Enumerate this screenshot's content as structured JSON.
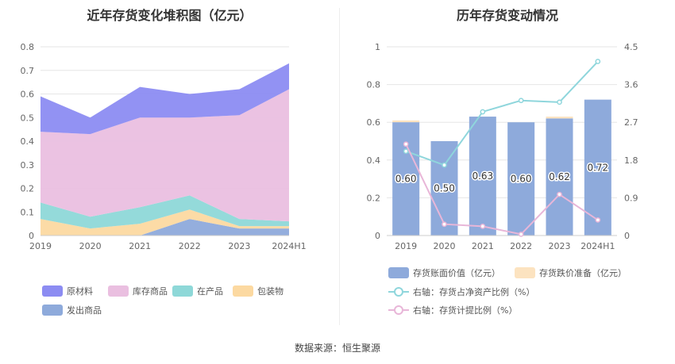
{
  "source_note": "数据来源：恒生聚源",
  "chart_data": [
    {
      "type": "area",
      "stacked": true,
      "title": "近年存货变化堆积图（亿元）",
      "categories": [
        "2019",
        "2020",
        "2021",
        "2022",
        "2023",
        "2024H1"
      ],
      "ylim": [
        0,
        0.8
      ],
      "yticks": [
        "0",
        "0.1",
        "0.2",
        "0.3",
        "0.4",
        "0.5",
        "0.6",
        "0.7",
        "0.8"
      ],
      "grid": true,
      "legend_position": "bottom-left",
      "series": [
        {
          "name": "发出商品",
          "color": "#8eaadb",
          "values": [
            0.0,
            0.0,
            0.0,
            0.07,
            0.03,
            0.03
          ]
        },
        {
          "name": "包装物",
          "color": "#fcd9a1",
          "values": [
            0.07,
            0.03,
            0.05,
            0.04,
            0.01,
            0.01
          ]
        },
        {
          "name": "在产品",
          "color": "#8ed8d8",
          "values": [
            0.07,
            0.05,
            0.07,
            0.06,
            0.03,
            0.02
          ]
        },
        {
          "name": "库存商品",
          "color": "#eabfe0",
          "values": [
            0.3,
            0.35,
            0.38,
            0.33,
            0.44,
            0.56
          ]
        },
        {
          "name": "原材料",
          "color": "#8c8cf2",
          "values": [
            0.15,
            0.07,
            0.13,
            0.1,
            0.11,
            0.11
          ]
        }
      ],
      "legend_order": [
        "原材料",
        "库存商品",
        "在产品",
        "包装物",
        "发出商品"
      ]
    },
    {
      "type": "bar",
      "title": "历年存货变动情况",
      "categories": [
        "2019",
        "2020",
        "2021",
        "2022",
        "2023",
        "2024H1"
      ],
      "ylim": [
        0,
        1
      ],
      "yticks": [
        "0",
        "0.2",
        "0.4",
        "0.6",
        "0.8",
        "1"
      ],
      "y2lim": [
        0,
        4.5
      ],
      "y2ticks": [
        "0",
        "0.9",
        "1.8",
        "2.7",
        "3.6",
        "4.5"
      ],
      "grid": true,
      "legend_position": "bottom",
      "bar_series": [
        {
          "name": "存货账面价值（亿元）",
          "color": "#8eaadb",
          "values": [
            0.6,
            0.5,
            0.63,
            0.6,
            0.62,
            0.72
          ],
          "labels": [
            "0.60",
            "0.50",
            "0.63",
            "0.60",
            "0.62",
            "0.72"
          ]
        },
        {
          "name": "存货跌价准备（亿元）",
          "color": "#fce3c0",
          "values": [
            0.01,
            0.0,
            0.0,
            0.0,
            0.01,
            0.0
          ]
        }
      ],
      "line_series": [
        {
          "name": "右轴：存货占净资产比例（%）",
          "color": "#8fd6dc",
          "values": [
            2.01,
            1.68,
            2.95,
            3.22,
            3.18,
            4.15
          ]
        },
        {
          "name": "右轴：存货计提比例（%）",
          "color": "#e8b6d8",
          "values": [
            2.18,
            0.27,
            0.22,
            0.03,
            0.98,
            0.37
          ]
        }
      ]
    }
  ]
}
